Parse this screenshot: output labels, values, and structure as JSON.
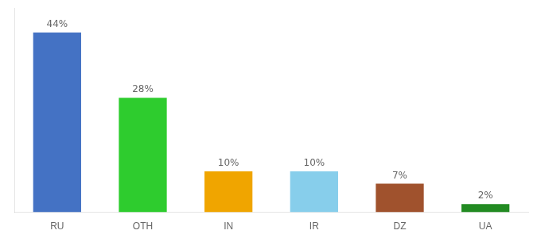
{
  "chart_data": {
    "type": "bar",
    "categories": [
      "RU",
      "OTH",
      "IN",
      "IR",
      "DZ",
      "UA"
    ],
    "values": [
      44,
      28,
      10,
      10,
      7,
      2
    ],
    "value_labels": [
      "44%",
      "28%",
      "10%",
      "10%",
      "7%",
      "2%"
    ],
    "colors": [
      "#4472c4",
      "#2ecc2e",
      "#f0a500",
      "#87ceeb",
      "#a0522d",
      "#228b22"
    ],
    "ylim": [
      0,
      50
    ],
    "data_labels": true,
    "tick_labels": "x",
    "grid": false
  }
}
